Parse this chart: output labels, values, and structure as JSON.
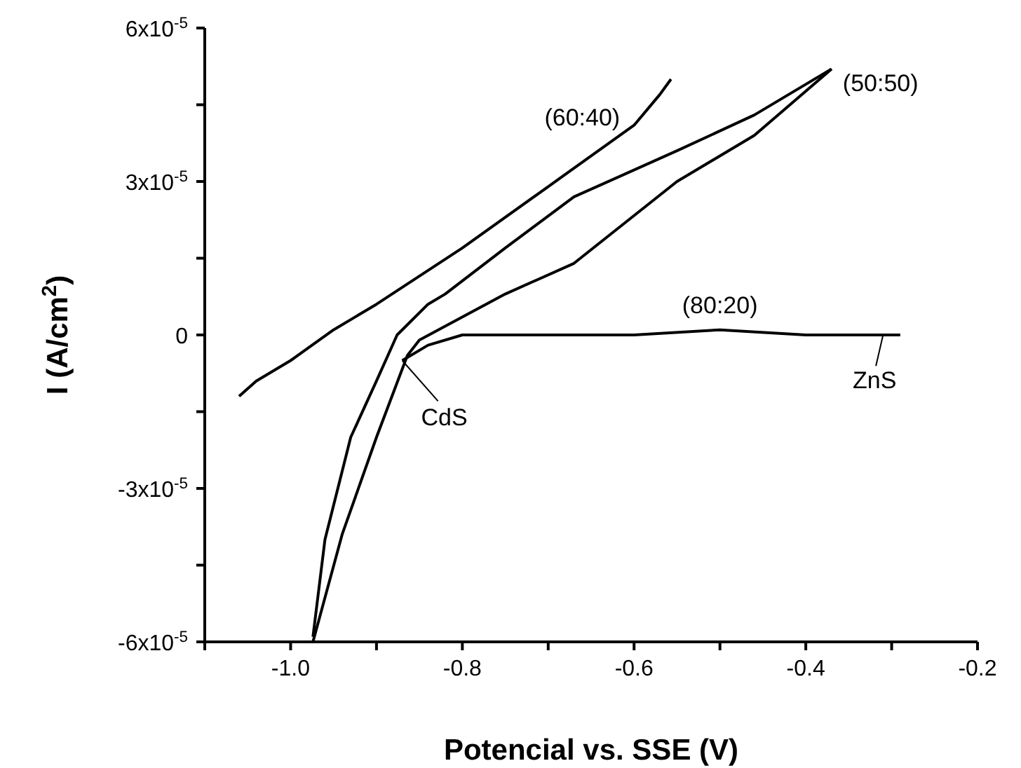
{
  "chart_data": {
    "type": "line",
    "xlabel": "Potencial vs. SSE (V)",
    "ylabel": "I (A/cm$^{2}$)",
    "xlim": [
      -1.1,
      -0.2
    ],
    "xticks": [
      {
        "value": -1.1,
        "label": null
      },
      {
        "value": -1.0,
        "label": "-1.0"
      },
      {
        "value": -0.9,
        "label": null
      },
      {
        "value": -0.8,
        "label": "-0.8"
      },
      {
        "value": -0.7,
        "label": null
      },
      {
        "value": -0.6,
        "label": "-0.6"
      },
      {
        "value": -0.5,
        "label": null
      },
      {
        "value": -0.4,
        "label": "-0.4"
      },
      {
        "value": -0.3,
        "label": null
      },
      {
        "value": -0.2,
        "label": "-0.2"
      }
    ],
    "ylim": [
      -6e-05,
      6e-05
    ],
    "yticks": [
      {
        "value": -6e-05,
        "label": "-6x10$^{-5}$"
      },
      {
        "value": -4.5e-05,
        "label": null
      },
      {
        "value": -3e-05,
        "label": "-3x10$^{-5}$"
      },
      {
        "value": -1.5e-05,
        "label": null
      },
      {
        "value": 0,
        "label": "0"
      },
      {
        "value": 1.5e-05,
        "label": null
      },
      {
        "value": 3e-05,
        "label": "3x10$^{-5}$"
      },
      {
        "value": 4.5e-05,
        "label": null
      },
      {
        "value": 6e-05,
        "label": "6x10$^{-5}$"
      }
    ],
    "marker": "none",
    "line_style": "solid",
    "series": [
      {
        "name": "(60:40)",
        "color": "#000000",
        "x": [
          -1.06,
          -1.04,
          -1.0,
          -0.95,
          -0.9,
          -0.8,
          -0.7,
          -0.6,
          -0.57,
          -0.557
        ],
        "values": [
          -1.2e-05,
          -9e-06,
          -5e-06,
          1e-06,
          6e-06,
          1.7e-05,
          2.9e-05,
          4.1e-05,
          4.7e-05,
          5e-05
        ]
      },
      {
        "name": "(50:50)",
        "color": "#000000",
        "x": [
          -0.974,
          -0.96,
          -0.93,
          -0.9,
          -0.876,
          -0.84,
          -0.82,
          -0.75,
          -0.67,
          -0.55,
          -0.46,
          -0.37
        ],
        "values": [
          -5.9e-05,
          -4e-05,
          -2e-05,
          -9e-06,
          0,
          6e-06,
          8e-06,
          1.7e-05,
          2.7e-05,
          3.6e-05,
          4.3e-05,
          5.2e-05
        ]
      },
      {
        "color": "#000000",
        "x": [
          -0.974,
          -0.94,
          -0.9,
          -0.864,
          -0.85,
          -0.75,
          -0.67,
          -0.55,
          -0.46,
          -0.37
        ],
        "values": [
          -6e-05,
          -3.9e-05,
          -2e-05,
          -4e-06,
          -1e-06,
          8e-06,
          1.4e-05,
          3e-05,
          3.9e-05,
          5.2e-05
        ]
      },
      {
        "name": "(80:20)",
        "color": "#000000",
        "x": [
          -0.87,
          -0.84,
          -0.8,
          -0.75,
          -0.7,
          -0.6,
          -0.5,
          -0.4,
          -0.35,
          -0.29
        ],
        "values": [
          -5e-06,
          -2e-06,
          0,
          0,
          0,
          0,
          1e-06,
          0,
          0,
          0
        ]
      }
    ],
    "annotations": [
      {
        "text": "CdS",
        "x": -0.87,
        "y": -5e-06
      },
      {
        "text": "ZnS",
        "x": -0.31,
        "y": 0
      }
    ]
  }
}
